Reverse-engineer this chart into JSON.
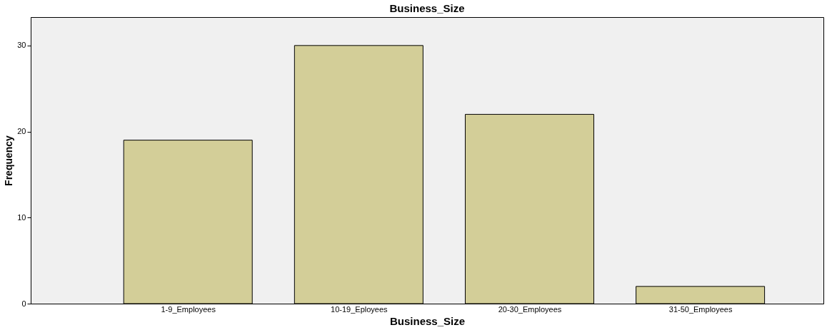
{
  "chart_data": {
    "type": "bar",
    "title": "Business_Size",
    "xlabel": "Business_Size",
    "ylabel": "Frequency",
    "categories": [
      "1-9_Employees",
      "10-19_Eployees",
      "20-30_Employees",
      "31-50_Employees"
    ],
    "values": [
      19,
      30,
      22,
      2
    ],
    "color": "#d3ce98",
    "ylim": [
      0,
      33.3
    ],
    "yticks": [
      0,
      10,
      20,
      30
    ],
    "grid": false
  }
}
